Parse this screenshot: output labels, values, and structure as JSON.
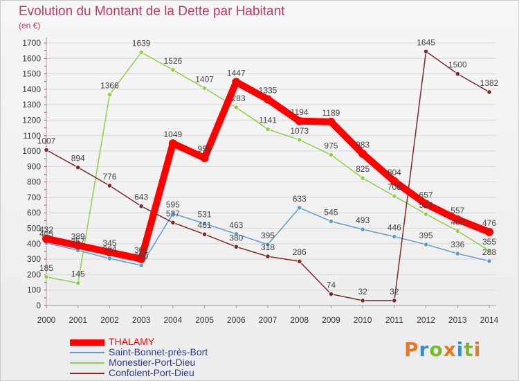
{
  "title": "Evolution du Montant de la Dette par Habitant",
  "unit": "(en €)",
  "logo": {
    "text": "Proxiti",
    "colors": [
      "#e87722",
      "#3a8fc7",
      "#7ab929",
      "#e87722",
      "#3a8fc7",
      "#7ab929",
      "#e87722"
    ]
  },
  "chart_data": {
    "type": "line",
    "title": "Evolution du Montant de la Dette par Habitant",
    "ylabel": "(en €)",
    "xlabel": "",
    "ylim": [
      0,
      1700
    ],
    "y_ticks": [
      0,
      100,
      200,
      300,
      400,
      500,
      600,
      700,
      800,
      900,
      1000,
      1100,
      1200,
      1300,
      1400,
      1500,
      1600,
      1700
    ],
    "x": [
      "2000",
      "2001",
      "2002",
      "2003",
      "2004",
      "2005",
      "2006",
      "2007",
      "2008",
      "2009",
      "2010",
      "2011",
      "2012",
      "2013",
      "2014"
    ],
    "grid": true,
    "legend_position": "bottom-left",
    "series": [
      {
        "name": "THALAMY",
        "color": "#ff0000",
        "thick": true,
        "values": [
          432,
          389,
          345,
          301,
          1049,
          955,
          1447,
          1335,
          1194,
          1189,
          983,
          804,
          657,
          557,
          476
        ]
      },
      {
        "name": "Saint-Bonnet-près-Bort",
        "color": "#5a9bd0",
        "thick": false,
        "values": [
          405,
          357,
          304,
          260,
          595,
          531,
          463,
          395,
          633,
          545,
          493,
          446,
          395,
          336,
          288
        ]
      },
      {
        "name": "Monestier-Port-Dieu",
        "color": "#8fd04a",
        "thick": false,
        "values": [
          185,
          145,
          1366,
          1639,
          1526,
          1407,
          1283,
          1141,
          1073,
          975,
          825,
          708,
          592,
          482,
          355
        ]
      },
      {
        "name": "Confolent-Port-Dieu",
        "color": "#7a2a2a",
        "thick": false,
        "values": [
          1007,
          894,
          776,
          643,
          537,
          461,
          380,
          318,
          286,
          74,
          32,
          32,
          1645,
          1500,
          1382
        ]
      }
    ]
  }
}
